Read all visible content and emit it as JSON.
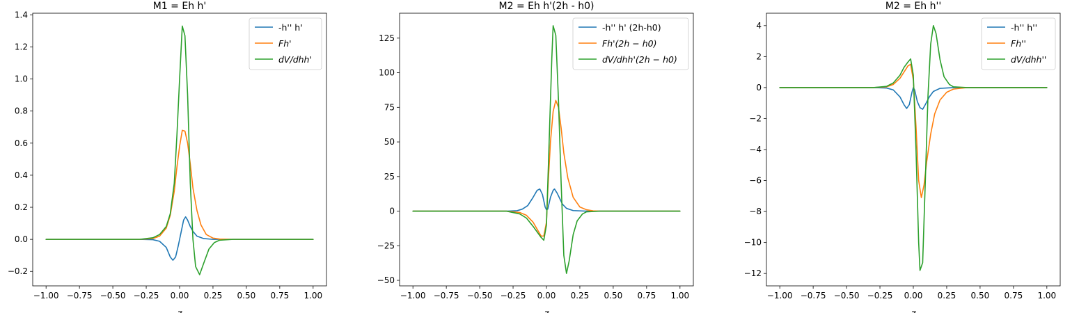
{
  "chart_data": [
    {
      "type": "line",
      "title": "M1 = Eh h'",
      "xlabel": "z",
      "ylabel": "",
      "xlim": [
        -1.1,
        1.1
      ],
      "ylim": [
        -0.29,
        1.41
      ],
      "xticks": [
        -1.0,
        -0.75,
        -0.5,
        -0.25,
        0.0,
        0.25,
        0.5,
        0.75,
        1.0
      ],
      "xtick_labels": [
        "−1.00",
        "−0.75",
        "−0.50",
        "−0.25",
        "0.00",
        "0.25",
        "0.50",
        "0.75",
        "1.00"
      ],
      "yticks": [
        -0.2,
        0.0,
        0.2,
        0.4,
        0.6,
        0.8,
        1.0,
        1.2,
        1.4
      ],
      "ytick_labels": [
        "−0.2",
        "0.0",
        "0.2",
        "0.4",
        "0.6",
        "0.8",
        "1.0",
        "1.2",
        "1.4"
      ],
      "legend": "upper right",
      "series": [
        {
          "name": "-h'' h'",
          "color": "#1f77b4",
          "points": [
            [
              -1.0,
              0
            ],
            [
              -0.3,
              0
            ],
            [
              -0.2,
              -0.002
            ],
            [
              -0.15,
              -0.012
            ],
            [
              -0.1,
              -0.05
            ],
            [
              -0.07,
              -0.11
            ],
            [
              -0.05,
              -0.13
            ],
            [
              -0.03,
              -0.11
            ],
            [
              -0.01,
              -0.04
            ],
            [
              0.0,
              0.0
            ],
            [
              0.01,
              0.04
            ],
            [
              0.03,
              0.12
            ],
            [
              0.045,
              0.14
            ],
            [
              0.06,
              0.12
            ],
            [
              0.08,
              0.08
            ],
            [
              0.1,
              0.05
            ],
            [
              0.13,
              0.02
            ],
            [
              0.18,
              0.005
            ],
            [
              0.25,
              0.0
            ],
            [
              1.0,
              0
            ]
          ]
        },
        {
          "name": "Fh'",
          "color": "#ff7f0e",
          "points": [
            [
              -1.0,
              0
            ],
            [
              -0.3,
              0
            ],
            [
              -0.2,
              0.005
            ],
            [
              -0.15,
              0.02
            ],
            [
              -0.1,
              0.07
            ],
            [
              -0.07,
              0.15
            ],
            [
              -0.04,
              0.3
            ],
            [
              -0.02,
              0.45
            ],
            [
              0.0,
              0.58
            ],
            [
              0.02,
              0.68
            ],
            [
              0.04,
              0.675
            ],
            [
              0.06,
              0.6
            ],
            [
              0.08,
              0.47
            ],
            [
              0.1,
              0.32
            ],
            [
              0.13,
              0.18
            ],
            [
              0.16,
              0.09
            ],
            [
              0.2,
              0.03
            ],
            [
              0.25,
              0.008
            ],
            [
              0.3,
              0.002
            ],
            [
              0.4,
              0.0
            ],
            [
              1.0,
              0
            ]
          ]
        },
        {
          "name": "dV/dhh'",
          "color": "#2ca02c",
          "points": [
            [
              -1.0,
              0
            ],
            [
              -0.3,
              0
            ],
            [
              -0.2,
              0.01
            ],
            [
              -0.15,
              0.03
            ],
            [
              -0.1,
              0.08
            ],
            [
              -0.07,
              0.16
            ],
            [
              -0.04,
              0.35
            ],
            [
              -0.02,
              0.65
            ],
            [
              0.0,
              1.0
            ],
            [
              0.02,
              1.33
            ],
            [
              0.04,
              1.27
            ],
            [
              0.06,
              0.9
            ],
            [
              0.08,
              0.35
            ],
            [
              0.1,
              0.0
            ],
            [
              0.12,
              -0.17
            ],
            [
              0.15,
              -0.22
            ],
            [
              0.18,
              -0.15
            ],
            [
              0.22,
              -0.06
            ],
            [
              0.26,
              -0.02
            ],
            [
              0.3,
              -0.005
            ],
            [
              0.4,
              0.0
            ],
            [
              1.0,
              0
            ]
          ]
        }
      ]
    },
    {
      "type": "line",
      "title": "M2 = Eh h'(2h - h0)",
      "xlabel": "z",
      "ylabel": "",
      "xlim": [
        -1.1,
        1.1
      ],
      "ylim": [
        -54,
        143
      ],
      "xticks": [
        -1.0,
        -0.75,
        -0.5,
        -0.25,
        0.0,
        0.25,
        0.5,
        0.75,
        1.0
      ],
      "xtick_labels": [
        "−1.00",
        "−0.75",
        "−0.50",
        "−0.25",
        "0.00",
        "0.25",
        "0.50",
        "0.75",
        "1.00"
      ],
      "yticks": [
        -50,
        -25,
        0,
        25,
        50,
        75,
        100,
        125
      ],
      "ytick_labels": [
        "−50",
        "−25",
        "0",
        "25",
        "50",
        "75",
        "100",
        "125"
      ],
      "legend": "upper right",
      "series": [
        {
          "name": "-h'' h' (2h-h0)",
          "color": "#1f77b4",
          "points": [
            [
              -1.0,
              0
            ],
            [
              -0.3,
              0
            ],
            [
              -0.22,
              0.3
            ],
            [
              -0.18,
              1.5
            ],
            [
              -0.14,
              4
            ],
            [
              -0.1,
              10
            ],
            [
              -0.07,
              15
            ],
            [
              -0.05,
              16
            ],
            [
              -0.03,
              12
            ],
            [
              -0.01,
              3
            ],
            [
              0.0,
              1
            ],
            [
              0.01,
              1.5
            ],
            [
              0.03,
              10
            ],
            [
              0.05,
              15
            ],
            [
              0.06,
              16
            ],
            [
              0.08,
              13
            ],
            [
              0.1,
              9
            ],
            [
              0.12,
              5
            ],
            [
              0.15,
              2
            ],
            [
              0.2,
              0.4
            ],
            [
              0.3,
              0.0
            ],
            [
              1.0,
              0
            ]
          ]
        },
        {
          "name": "Fh'(2h − h0)",
          "color": "#ff7f0e",
          "points": [
            [
              -1.0,
              0
            ],
            [
              -0.3,
              0
            ],
            [
              -0.2,
              -1
            ],
            [
              -0.15,
              -3
            ],
            [
              -0.1,
              -8
            ],
            [
              -0.07,
              -13
            ],
            [
              -0.04,
              -18
            ],
            [
              -0.02,
              -18
            ],
            [
              0.0,
              -8
            ],
            [
              0.01,
              15
            ],
            [
              0.03,
              50
            ],
            [
              0.05,
              72
            ],
            [
              0.07,
              80
            ],
            [
              0.09,
              75
            ],
            [
              0.11,
              60
            ],
            [
              0.13,
              42
            ],
            [
              0.16,
              24
            ],
            [
              0.2,
              10
            ],
            [
              0.25,
              3
            ],
            [
              0.3,
              1
            ],
            [
              0.35,
              0.2
            ],
            [
              0.4,
              0.0
            ],
            [
              1.0,
              0
            ]
          ]
        },
        {
          "name": "dV/dhh'(2h − h0)",
          "color": "#2ca02c",
          "points": [
            [
              -1.0,
              0
            ],
            [
              -0.3,
              0
            ],
            [
              -0.2,
              -2
            ],
            [
              -0.15,
              -5
            ],
            [
              -0.1,
              -11
            ],
            [
              -0.07,
              -15
            ],
            [
              -0.04,
              -19
            ],
            [
              -0.02,
              -21
            ],
            [
              0.0,
              -10
            ],
            [
              0.02,
              50
            ],
            [
              0.04,
              110
            ],
            [
              0.05,
              134
            ],
            [
              0.07,
              127
            ],
            [
              0.09,
              80
            ],
            [
              0.11,
              20
            ],
            [
              0.13,
              -32
            ],
            [
              0.15,
              -45
            ],
            [
              0.17,
              -36
            ],
            [
              0.2,
              -17
            ],
            [
              0.23,
              -7
            ],
            [
              0.27,
              -2
            ],
            [
              0.3,
              -0.5
            ],
            [
              0.4,
              0.0
            ],
            [
              1.0,
              0
            ]
          ]
        }
      ]
    },
    {
      "type": "line",
      "title": "M2 = Eh h''",
      "xlabel": "z",
      "ylabel": "",
      "xlim": [
        -1.1,
        1.1
      ],
      "ylim": [
        -12.8,
        4.8
      ],
      "xticks": [
        -1.0,
        -0.75,
        -0.5,
        -0.25,
        0.0,
        0.25,
        0.5,
        0.75,
        1.0
      ],
      "xtick_labels": [
        "−1.00",
        "−0.75",
        "−0.50",
        "−0.25",
        "0.00",
        "0.25",
        "0.50",
        "0.75",
        "1.00"
      ],
      "yticks": [
        -12,
        -10,
        -8,
        -6,
        -4,
        -2,
        0,
        2,
        4
      ],
      "ytick_labels": [
        "−12",
        "−10",
        "−8",
        "−6",
        "−4",
        "−2",
        "0",
        "2",
        "4"
      ],
      "legend": "upper right",
      "series": [
        {
          "name": "-h'' h''",
          "color": "#1f77b4",
          "points": [
            [
              -1.0,
              0
            ],
            [
              -0.3,
              0
            ],
            [
              -0.2,
              -0.03
            ],
            [
              -0.15,
              -0.15
            ],
            [
              -0.1,
              -0.6
            ],
            [
              -0.07,
              -1.1
            ],
            [
              -0.05,
              -1.35
            ],
            [
              -0.03,
              -1.1
            ],
            [
              -0.01,
              -0.3
            ],
            [
              0.0,
              0.0
            ],
            [
              0.01,
              -0.15
            ],
            [
              0.03,
              -0.9
            ],
            [
              0.05,
              -1.3
            ],
            [
              0.07,
              -1.4
            ],
            [
              0.09,
              -1.1
            ],
            [
              0.12,
              -0.6
            ],
            [
              0.15,
              -0.25
            ],
            [
              0.2,
              -0.05
            ],
            [
              0.3,
              0.0
            ],
            [
              1.0,
              0
            ]
          ]
        },
        {
          "name": "Fh''",
          "color": "#ff7f0e",
          "points": [
            [
              -1.0,
              0
            ],
            [
              -0.3,
              0
            ],
            [
              -0.2,
              0.05
            ],
            [
              -0.15,
              0.2
            ],
            [
              -0.1,
              0.6
            ],
            [
              -0.07,
              1.0
            ],
            [
              -0.04,
              1.4
            ],
            [
              -0.02,
              1.5
            ],
            [
              0.0,
              0.5
            ],
            [
              0.02,
              -2.5
            ],
            [
              0.04,
              -6
            ],
            [
              0.06,
              -7.1
            ],
            [
              0.08,
              -6.3
            ],
            [
              0.1,
              -4.8
            ],
            [
              0.13,
              -3
            ],
            [
              0.16,
              -1.7
            ],
            [
              0.2,
              -0.8
            ],
            [
              0.25,
              -0.3
            ],
            [
              0.3,
              -0.1
            ],
            [
              0.4,
              0.0
            ],
            [
              1.0,
              0
            ]
          ]
        },
        {
          "name": "dV/dhh''",
          "color": "#2ca02c",
          "points": [
            [
              -1.0,
              0
            ],
            [
              -0.3,
              0
            ],
            [
              -0.2,
              0.08
            ],
            [
              -0.15,
              0.3
            ],
            [
              -0.1,
              0.8
            ],
            [
              -0.07,
              1.3
            ],
            [
              -0.04,
              1.65
            ],
            [
              -0.02,
              1.85
            ],
            [
              0.0,
              0.8
            ],
            [
              0.02,
              -4
            ],
            [
              0.04,
              -10
            ],
            [
              0.05,
              -11.8
            ],
            [
              0.07,
              -11.3
            ],
            [
              0.09,
              -6
            ],
            [
              0.11,
              -0.5
            ],
            [
              0.13,
              2.8
            ],
            [
              0.15,
              4.0
            ],
            [
              0.17,
              3.5
            ],
            [
              0.2,
              1.8
            ],
            [
              0.23,
              0.7
            ],
            [
              0.27,
              0.2
            ],
            [
              0.3,
              0.05
            ],
            [
              0.4,
              0.0
            ],
            [
              1.0,
              0
            ]
          ]
        }
      ]
    }
  ]
}
